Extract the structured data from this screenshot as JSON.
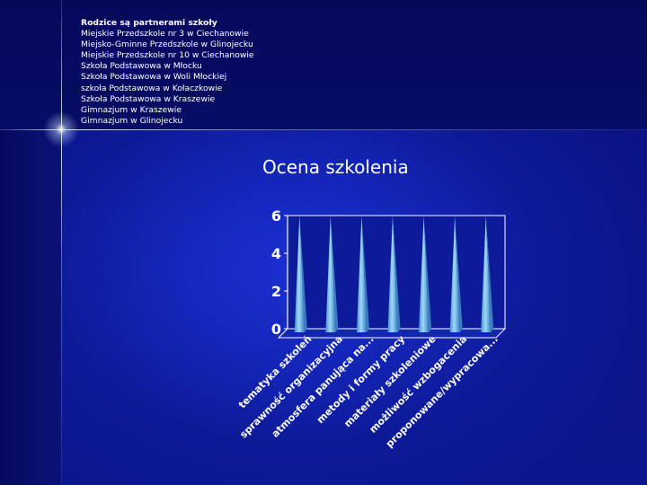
{
  "partners": {
    "heading": "Rodzice są partnerami szkoły",
    "items": [
      "Miejskie Przedszkole nr 3 w Ciechanowie",
      "Miejsko-Gminne Przedszkole w Glinojecku",
      "Miejskie Przedszkole nr 10 w Ciechanowie",
      "Szkoła Podstawowa w Młocku",
      "Szkoła Podstawowa w Woli Młockiej",
      "szkoła Podstawowa w Kołaczkowie",
      "Szkoła Podstawowa w Kraszewie",
      "Gimnazjum w Kraszewie",
      "Gimnazjum w Glinojecku"
    ]
  },
  "chart_data": {
    "type": "bar",
    "title": "Ocena szkolenia",
    "categories": [
      "tematyka szkoleń",
      "sprawność organizacyjna",
      "atmosfera panująca na...",
      "metody i formy pracy",
      "materiały szkoleniowe",
      "możliwość wzbogacenia",
      "proponowane/wypracowa..."
    ],
    "values": [
      6,
      6,
      6,
      6,
      6,
      6,
      6
    ],
    "yticks": [
      "0",
      "2",
      "4",
      "6"
    ],
    "ylim": [
      0,
      6
    ],
    "grid": false,
    "legend": "none",
    "bar_shape": "pyramid",
    "colors": {
      "bar": "#7fc8f0",
      "bar_shade": "#3a7fc0",
      "axis": "#ffffff",
      "plot_wall": "#0d1a9a"
    }
  }
}
